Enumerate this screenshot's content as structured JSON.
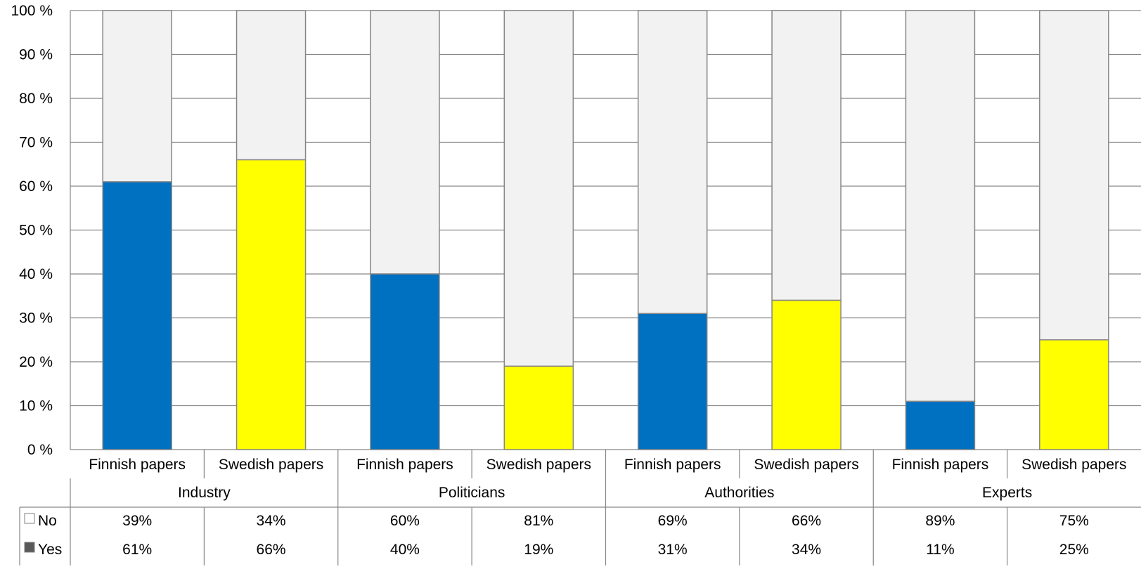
{
  "chart_data": {
    "type": "bar",
    "stacked": true,
    "percent_stacked": true,
    "groups": [
      "Industry",
      "Politicians",
      "Authorities",
      "Experts"
    ],
    "categories": [
      "Finnish papers",
      "Swedish papers",
      "Finnish papers",
      "Swedish papers",
      "Finnish papers",
      "Swedish papers",
      "Finnish papers",
      "Swedish papers"
    ],
    "group_of_category": [
      0,
      0,
      1,
      1,
      2,
      2,
      3,
      3
    ],
    "series": [
      {
        "name": "Yes",
        "values": [
          61,
          66,
          40,
          19,
          31,
          34,
          11,
          25
        ],
        "labels": [
          "61%",
          "66%",
          "40%",
          "19%",
          "31%",
          "34%",
          "11%",
          "25%"
        ]
      },
      {
        "name": "No",
        "values": [
          39,
          34,
          60,
          81,
          69,
          66,
          89,
          75
        ],
        "labels": [
          "39%",
          "34%",
          "60%",
          "81%",
          "69%",
          "66%",
          "89%",
          "75%"
        ]
      }
    ],
    "yes_colors": [
      "#0070c0",
      "#ffff00",
      "#0070c0",
      "#ffff00",
      "#0070c0",
      "#ffff00",
      "#0070c0",
      "#ffff00"
    ],
    "no_color": "#f2f2f2",
    "yes_legend_color": "#595959",
    "y_ticks": [
      "0 %",
      "10 %",
      "20 %",
      "30 %",
      "40 %",
      "50 %",
      "60 %",
      "70 %",
      "80 %",
      "90 %",
      "100 %"
    ],
    "ylim": [
      0,
      100
    ],
    "grid": true,
    "legend": "data-table"
  }
}
